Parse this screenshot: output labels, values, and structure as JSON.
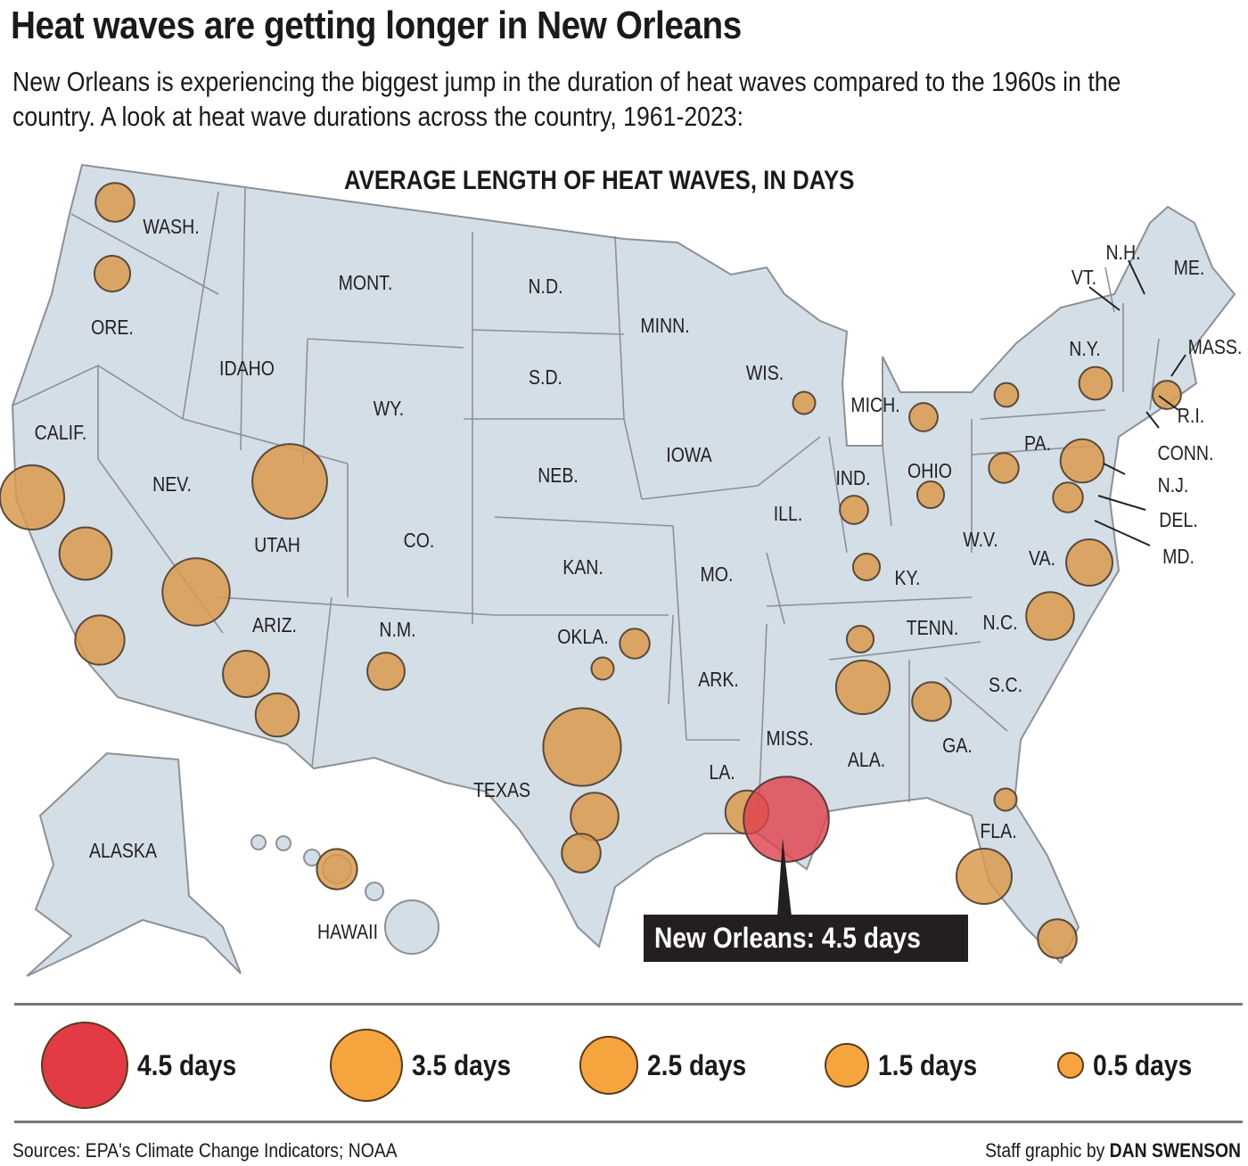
{
  "title": "Heat waves are getting longer in New Orleans",
  "subtitle": "New Orleans is experiencing the biggest jump in the duration of heat waves compared to the 1960s in the country. A look at heat wave durations across the country, 1961-2023:",
  "map_title": "AVERAGE LENGTH OF HEAT WAVES, IN DAYS",
  "colors": {
    "land": "#d4dee6",
    "border": "#8c9196",
    "circle": "#d99a4c",
    "highlight": "#e0404c",
    "legend_orange": "#f6a53e",
    "legend_red": "#e23b46"
  },
  "state_labels": [
    "WASH.",
    "ORE.",
    "CALIF.",
    "NEV.",
    "IDAHO",
    "MONT.",
    "WY.",
    "UTAH",
    "ARIZ.",
    "CO.",
    "N.M.",
    "N.D.",
    "S.D.",
    "NEB.",
    "KAN.",
    "OKLA.",
    "TEXAS",
    "MINN.",
    "IOWA",
    "MO.",
    "ARK.",
    "LA.",
    "WIS.",
    "ILL.",
    "MISS.",
    "MICH.",
    "IND.",
    "KY.",
    "TENN.",
    "ALA.",
    "OHIO",
    "GA.",
    "FLA.",
    "S.C.",
    "N.C.",
    "W.V.",
    "VA.",
    "PA.",
    "N.Y.",
    "VT.",
    "N.H.",
    "ME.",
    "MASS.",
    "R.I.",
    "CONN.",
    "N.J.",
    "DEL.",
    "MD.",
    "ALASKA",
    "HAWAII"
  ],
  "stations": [
    {
      "state": "WASH.",
      "days": 1.4
    },
    {
      "state": "ORE.",
      "days": 1.2
    },
    {
      "state": "CALIF.",
      "days": 3.1
    },
    {
      "state": "CALIF.",
      "days": 2.3
    },
    {
      "state": "CALIF.",
      "days": 2.1
    },
    {
      "state": "NEV.",
      "days": 3.3
    },
    {
      "state": "UTAH",
      "days": 3.8
    },
    {
      "state": "ARIZ.",
      "days": 1.9
    },
    {
      "state": "ARIZ.",
      "days": 1.7
    },
    {
      "state": "N.M.",
      "days": 1.3
    },
    {
      "state": "TEXAS",
      "days": 4.0
    },
    {
      "state": "TEXAS",
      "days": 2.0
    },
    {
      "state": "TEXAS",
      "days": 1.4
    },
    {
      "state": "OKLA.",
      "days": 0.8
    },
    {
      "state": "OKLA.",
      "days": 0.3
    },
    {
      "state": "LA.",
      "days": 1.7
    },
    {
      "state": "N.C.",
      "days": 2.0
    },
    {
      "state": "ALA.",
      "days": 2.4
    },
    {
      "state": "GA.",
      "days": 1.4
    },
    {
      "state": "TENN.",
      "days": 0.6
    },
    {
      "state": "KY.",
      "days": 0.6
    },
    {
      "state": "IND.",
      "days": 0.7
    },
    {
      "state": "OHIO",
      "days": 0.6
    },
    {
      "state": "MICH.",
      "days": 0.7
    },
    {
      "state": "WIS.",
      "days": 0.3
    },
    {
      "state": "N.Y.",
      "days": 0.4
    },
    {
      "state": "N.Y.",
      "days": 1.0
    },
    {
      "state": "MASS.",
      "days": 0.7
    },
    {
      "state": "PA.",
      "days": 0.8
    },
    {
      "state": "PA.",
      "days": 1.7
    },
    {
      "state": "MD.",
      "days": 0.8
    },
    {
      "state": "VA.",
      "days": 1.9
    },
    {
      "state": "FLA.",
      "days": 0.3
    },
    {
      "state": "FLA.",
      "days": 2.5
    },
    {
      "state": "FLA.",
      "days": 1.4
    },
    {
      "state": "HAWAII",
      "days": 1.5
    }
  ],
  "highlight": {
    "label": "New Orleans: 4.5 days",
    "days": 4.5
  },
  "legend": [
    {
      "label": "4.5 days",
      "days": 4.5,
      "color": "red"
    },
    {
      "label": "3.5 days",
      "days": 3.5,
      "color": "orange"
    },
    {
      "label": "2.5 days",
      "days": 2.5,
      "color": "orange"
    },
    {
      "label": "1.5 days",
      "days": 1.5,
      "color": "orange"
    },
    {
      "label": "0.5 days",
      "days": 0.5,
      "color": "orange"
    }
  ],
  "footer": {
    "sources": "Sources: EPA's Climate Change Indicators; NOAA",
    "credit_prefix": "Staff graphic by ",
    "credit_name": "DAN SWENSON"
  }
}
